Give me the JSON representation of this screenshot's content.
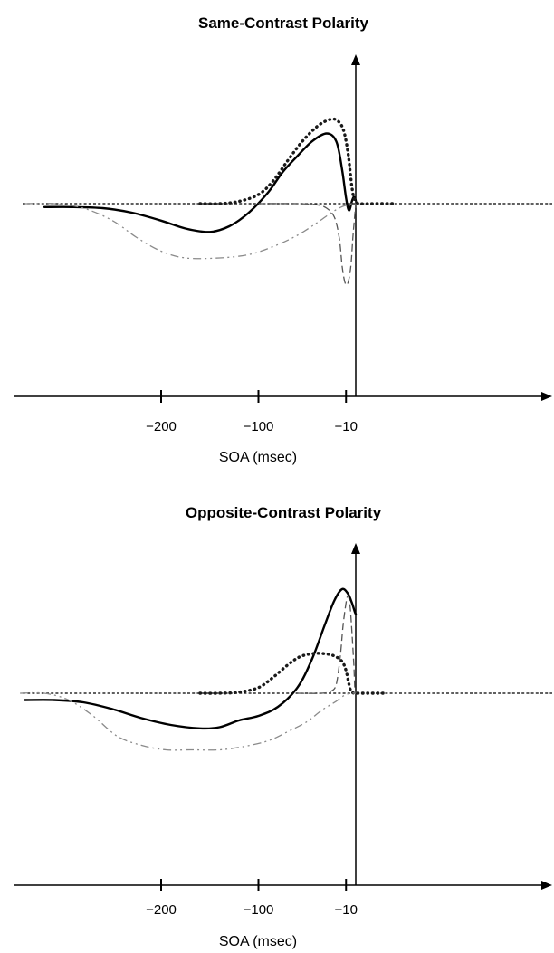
{
  "chart_data": [
    {
      "type": "line",
      "title": "Same-Contrast Polarity",
      "xlabel": "SOA (msec)",
      "ylabel": "",
      "x_ticks": [
        "−200",
        "−100",
        "−10"
      ],
      "x_tick_values": [
        -200,
        -100,
        -10
      ],
      "xlim": [
        -330,
        210
      ],
      "ylim": [
        -1.0,
        1.0
      ],
      "series": [
        {
          "style": "solid",
          "x": [
            -320,
            -290,
            -260,
            -230,
            -200,
            -175,
            -150,
            -130,
            -110,
            -90,
            -75,
            -60,
            -45,
            -30,
            -20,
            -14,
            -10,
            -7,
            -4,
            -2,
            0
          ],
          "y": [
            -0.03,
            -0.03,
            -0.04,
            -0.08,
            -0.15,
            -0.22,
            -0.25,
            -0.2,
            -0.08,
            0.1,
            0.28,
            0.42,
            0.55,
            0.62,
            0.55,
            0.3,
            0.05,
            -0.06,
            0.02,
            0.06,
            0.03
          ]
        },
        {
          "style": "dotted",
          "x": [
            -160,
            -140,
            -120,
            -100,
            -85,
            -70,
            -55,
            -40,
            -28,
            -20,
            -13,
            -8,
            -4,
            -1,
            5,
            20,
            40
          ],
          "y": [
            0.0,
            0.0,
            0.02,
            0.08,
            0.2,
            0.38,
            0.55,
            0.68,
            0.74,
            0.74,
            0.66,
            0.45,
            0.15,
            0.03,
            0.0,
            0.0,
            0.0
          ]
        },
        {
          "style": "dash-dot",
          "x": [
            -340,
            -310,
            -280,
            -250,
            -225,
            -200,
            -175,
            -140,
            -110,
            -85,
            -60,
            -40,
            -25,
            -15,
            -8,
            -4,
            0
          ],
          "y": [
            0.0,
            0.0,
            -0.04,
            -0.15,
            -0.3,
            -0.42,
            -0.48,
            -0.48,
            -0.45,
            -0.38,
            -0.28,
            -0.17,
            -0.08,
            -0.03,
            -0.01,
            0.0,
            0.0
          ]
        },
        {
          "style": "dashed",
          "x": [
            -100,
            -60,
            -40,
            -30,
            -22,
            -17,
            -14,
            -11,
            -8,
            -5,
            -3,
            -1,
            0
          ],
          "y": [
            0.0,
            0.0,
            -0.01,
            -0.04,
            -0.12,
            -0.3,
            -0.55,
            -0.7,
            -0.7,
            -0.55,
            -0.3,
            -0.1,
            0.0
          ]
        }
      ]
    },
    {
      "type": "line",
      "title": "Opposite-Contrast Polarity",
      "xlabel": "SOA (msec)",
      "ylabel": "",
      "x_ticks": [
        "−200",
        "−100",
        "−10"
      ],
      "x_tick_values": [
        -200,
        -100,
        -10
      ],
      "xlim": [
        -330,
        210
      ],
      "ylim": [
        -1.0,
        1.0
      ],
      "series": [
        {
          "style": "solid",
          "x": [
            -340,
            -310,
            -280,
            -250,
            -220,
            -190,
            -160,
            -140,
            -120,
            -100,
            -80,
            -60,
            -45,
            -32,
            -22,
            -14,
            -8,
            -4,
            -1,
            0
          ],
          "y": [
            -0.06,
            -0.06,
            -0.08,
            -0.14,
            -0.22,
            -0.28,
            -0.31,
            -0.3,
            -0.24,
            -0.2,
            -0.12,
            0.05,
            0.3,
            0.6,
            0.82,
            0.92,
            0.88,
            0.8,
            0.72,
            0.7
          ]
        },
        {
          "style": "dotted",
          "x": [
            -160,
            -140,
            -120,
            -100,
            -85,
            -70,
            -58,
            -45,
            -32,
            -22,
            -14,
            -10,
            -7,
            -5,
            -2,
            0,
            5,
            30
          ],
          "y": [
            0.0,
            0.0,
            0.01,
            0.05,
            0.14,
            0.25,
            0.32,
            0.35,
            0.35,
            0.33,
            0.28,
            0.2,
            0.08,
            0.02,
            0.0,
            0.0,
            0.0,
            0.0
          ]
        },
        {
          "style": "dash-dot",
          "x": [
            -345,
            -320,
            -295,
            -270,
            -245,
            -220,
            -195,
            -170,
            -140,
            -115,
            -90,
            -70,
            -50,
            -35,
            -20,
            -12,
            -5,
            0
          ],
          "y": [
            0.0,
            0.0,
            -0.06,
            -0.2,
            -0.38,
            -0.46,
            -0.5,
            -0.5,
            -0.5,
            -0.47,
            -0.42,
            -0.34,
            -0.25,
            -0.15,
            -0.07,
            -0.02,
            0.0,
            0.0
          ]
        },
        {
          "style": "dashed",
          "x": [
            -60,
            -35,
            -25,
            -20,
            -16,
            -13,
            -10,
            -8,
            -6,
            -4,
            -2,
            -1,
            0
          ],
          "y": [
            0.0,
            0.0,
            0.02,
            0.08,
            0.32,
            0.6,
            0.8,
            0.86,
            0.78,
            0.55,
            0.25,
            0.05,
            0.0
          ]
        }
      ]
    }
  ]
}
